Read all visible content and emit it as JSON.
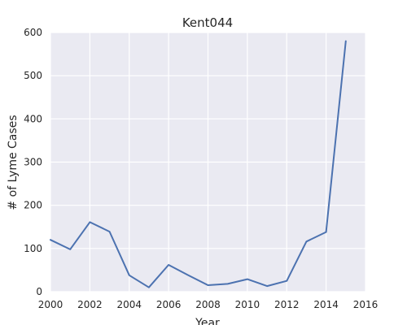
{
  "chart_data": {
    "type": "line",
    "title": "Kent044",
    "xlabel": "Year",
    "ylabel": "# of Lyme Cases",
    "xlim": [
      2000,
      2016
    ],
    "ylim": [
      0,
      600
    ],
    "xticks": [
      2000,
      2002,
      2004,
      2006,
      2008,
      2010,
      2012,
      2014,
      2016
    ],
    "yticks": [
      0,
      100,
      200,
      300,
      400,
      500,
      600
    ],
    "grid": true,
    "colors": {
      "background": "#eaeaf2",
      "grid": "#ffffff",
      "line": "#4c72b0"
    },
    "series": [
      {
        "x": [
          2000,
          2001,
          2002,
          2003,
          2004,
          2005,
          2006,
          2007,
          2008,
          2009,
          2010,
          2011,
          2012,
          2013,
          2014,
          2015
        ],
        "y": [
          120,
          98,
          161,
          139,
          38,
          10,
          62,
          38,
          15,
          18,
          29,
          13,
          25,
          116,
          138,
          580
        ]
      }
    ]
  }
}
